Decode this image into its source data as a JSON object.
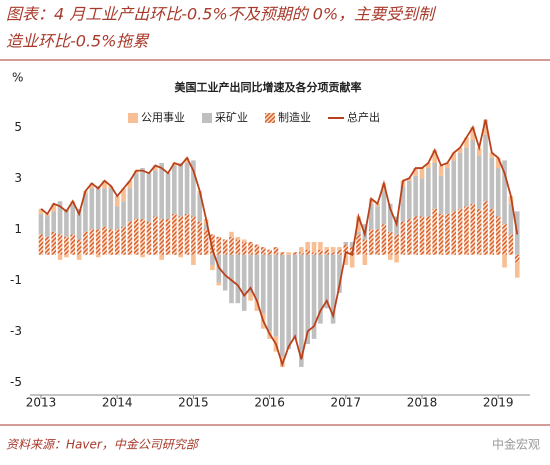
{
  "header": [
    "图表：4 月工业产出环比-0.5%不及预期的 0%，主要受到制",
    "造业环比-0.5%拖累"
  ],
  "source": "资料来源：Haver，中金公司研究部",
  "watermark": "中金宏观",
  "chart_data": {
    "type": "stacked_bar_line",
    "title": "美国工业产出同比增速及各分项贡献率",
    "y_label": "%",
    "categories": [
      "2013",
      null,
      null,
      null,
      null,
      null,
      null,
      null,
      null,
      null,
      null,
      null,
      "2014",
      null,
      null,
      null,
      null,
      null,
      null,
      null,
      null,
      null,
      null,
      null,
      "2015",
      null,
      null,
      null,
      null,
      null,
      null,
      null,
      null,
      null,
      null,
      null,
      "2016",
      null,
      null,
      null,
      null,
      null,
      null,
      null,
      null,
      null,
      null,
      null,
      "2017",
      null,
      null,
      null,
      null,
      null,
      null,
      null,
      null,
      null,
      null,
      null,
      "2018",
      null,
      null,
      null,
      null,
      null,
      null,
      null,
      null,
      null,
      null,
      null,
      "2019",
      null,
      null,
      null
    ],
    "series": [
      {
        "name": "公用事业",
        "color": "#f7bf93",
        "pattern": "solid",
        "values": [
          0.2,
          0.1,
          0.3,
          -0.2,
          -0.1,
          0.1,
          -0.2,
          0.1,
          0.2,
          -0.1,
          0.3,
          0.1,
          0.4,
          0.5,
          0.3,
          0.1,
          -0.1,
          0.0,
          0.2,
          -0.2,
          0.0,
          0.1,
          -0.1,
          0.2,
          -0.4,
          0.1,
          0.2,
          -0.2,
          -0.1,
          0.0,
          0.2,
          0.1,
          0.1,
          -0.3,
          -0.4,
          -0.6,
          -0.3,
          -0.6,
          -0.4,
          0.1,
          0.0,
          0.2,
          0.3,
          0.4,
          0.3,
          0.1,
          0.2,
          0.1,
          -0.4,
          -0.5,
          0.6,
          -0.4,
          0.2,
          0.1,
          0.3,
          -0.2,
          -0.3,
          0.2,
          0.1,
          0.3,
          0.4,
          0.2,
          0.5,
          0.4,
          0.2,
          0.3,
          0.2,
          0.4,
          0.5,
          0.3,
          0.6,
          0.2,
          0.4,
          -0.5,
          0.3,
          -0.6
        ]
      },
      {
        "name": "采矿业",
        "color": "#bfbfbf",
        "pattern": "solid",
        "values": [
          0.8,
          0.8,
          0.8,
          1.3,
          1.1,
          1.2,
          1.2,
          1.5,
          1.6,
          1.7,
          1.5,
          1.6,
          0.9,
          1.0,
          1.3,
          1.8,
          2.0,
          1.9,
          1.8,
          2.2,
          1.8,
          1.9,
          2.1,
          2.0,
          2.2,
          1.1,
          0.2,
          -0.4,
          -1.1,
          -1.4,
          -1.9,
          -1.9,
          -2.2,
          -1.5,
          -1.8,
          -2.3,
          -3.0,
          -3.2,
          -4.0,
          -3.7,
          -3.3,
          -4.4,
          -3.5,
          -3.3,
          -2.7,
          -2.1,
          -2.7,
          -1.5,
          0.1,
          0.2,
          0.1,
          0.6,
          1.0,
          0.9,
          1.3,
          1.1,
          0.7,
          1.4,
          1.5,
          1.6,
          1.5,
          1.9,
          1.8,
          1.5,
          1.8,
          2.0,
          2.2,
          2.3,
          2.5,
          2.1,
          2.6,
          2.0,
          1.9,
          2.5,
          1.2,
          1.7
        ]
      },
      {
        "name": "制造业",
        "color": "#d9622b",
        "pattern": "hatch",
        "values": [
          0.8,
          0.7,
          0.9,
          0.8,
          0.7,
          0.8,
          0.6,
          0.9,
          1.0,
          1.0,
          1.1,
          1.0,
          1.0,
          1.1,
          1.3,
          1.4,
          1.4,
          1.3,
          1.5,
          1.4,
          1.4,
          1.6,
          1.5,
          1.6,
          1.5,
          1.3,
          1.0,
          0.8,
          0.7,
          0.6,
          0.7,
          0.6,
          0.5,
          0.5,
          0.4,
          0.3,
          0.2,
          0.3,
          0.1,
          0.0,
          0.1,
          0.1,
          0.2,
          0.1,
          0.2,
          0.2,
          0.1,
          0.2,
          0.4,
          0.3,
          0.8,
          0.6,
          1.0,
          1.0,
          1.2,
          0.9,
          0.8,
          1.3,
          1.4,
          1.5,
          1.5,
          1.5,
          1.8,
          1.6,
          1.6,
          1.7,
          1.8,
          1.9,
          2.0,
          1.8,
          2.1,
          1.8,
          1.5,
          1.2,
          0.8,
          -0.3
        ]
      }
    ],
    "line": {
      "name": "总产出",
      "color": "#b9421c",
      "values": [
        1.8,
        1.6,
        2.0,
        1.9,
        1.7,
        2.1,
        1.6,
        2.5,
        2.8,
        2.6,
        2.9,
        2.7,
        2.3,
        2.6,
        2.9,
        3.3,
        3.3,
        3.2,
        3.5,
        3.4,
        3.2,
        3.6,
        3.5,
        3.8,
        3.3,
        2.5,
        1.4,
        0.2,
        -0.5,
        -0.8,
        -1.0,
        -1.2,
        -1.6,
        -1.3,
        -1.8,
        -2.6,
        -3.1,
        -3.5,
        -4.3,
        -3.6,
        -3.2,
        -4.1,
        -3.0,
        -2.8,
        -2.2,
        -1.8,
        -2.4,
        -1.2,
        0.1,
        0.0,
        1.5,
        0.8,
        2.2,
        2.0,
        2.8,
        1.8,
        1.2,
        2.9,
        3.0,
        3.4,
        3.4,
        3.6,
        4.1,
        3.5,
        3.6,
        4.0,
        4.2,
        4.6,
        5.0,
        4.2,
        5.3,
        4.0,
        3.8,
        3.2,
        2.3,
        0.8
      ]
    },
    "ylim": [
      -5.5,
      6.5
    ],
    "yticks": [
      -5,
      -3,
      -1,
      1,
      3,
      5
    ]
  }
}
